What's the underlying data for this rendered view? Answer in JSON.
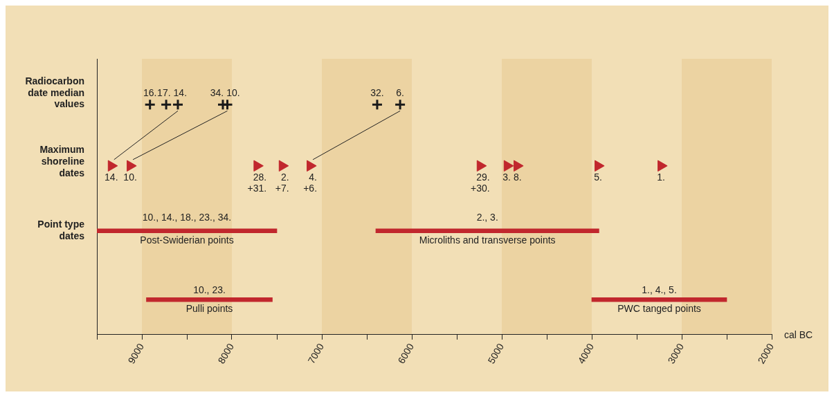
{
  "chart_data": {
    "type": "bar",
    "orientation": "horizontal",
    "xlabel": "cal BC",
    "categories": [
      "Radiocarbon date median values",
      "Maximum shoreline dates",
      "Point type dates",
      null
    ],
    "xlim": [
      9500,
      2000
    ],
    "xticks": [
      {
        "value": 9500,
        "label": null
      },
      9000,
      {
        "value": 8500,
        "label": null
      },
      8000,
      {
        "value": 7500,
        "label": null
      },
      7000,
      {
        "value": 6500,
        "label": null
      },
      6000,
      {
        "value": 5500,
        "label": null
      },
      5000,
      {
        "value": 4500,
        "label": null
      },
      4000,
      {
        "value": 3500,
        "label": null
      },
      3000,
      {
        "value": 2500,
        "label": null
      },
      2000
    ],
    "bands": [
      {
        "axis": "x",
        "from": 9000,
        "to": 8000,
        "color": "#ecd3a2"
      },
      {
        "axis": "x",
        "from": 7000,
        "to": 6000,
        "color": "#ecd3a2"
      },
      {
        "axis": "x",
        "from": 5000,
        "to": 4000,
        "color": "#ecd3a2"
      },
      {
        "axis": "x",
        "from": 3000,
        "to": 2000,
        "color": "#ecd3a2"
      }
    ],
    "annotations": [
      {
        "text": "10., 14., 18., 23., 34.",
        "x": 8500,
        "y": "Point type dates"
      },
      {
        "text": "10., 23."
      },
      {
        "text": "2., 3.",
        "x": 5160,
        "y": "Point type dates"
      },
      {
        "text": "1., 4., 5."
      }
    ],
    "series": [
      {
        "type": "scatter",
        "marker": "cross",
        "name": "16.",
        "color": "#1a1a1a",
        "values": [
          8910,
          null,
          null,
          null
        ]
      },
      {
        "type": "scatter",
        "marker": "cross",
        "name": "17.",
        "color": "#1a1a1a",
        "values": [
          8730,
          null,
          null,
          null
        ]
      },
      {
        "type": "scatter",
        "marker": "cross",
        "name": "14.",
        "color": "#1a1a1a",
        "values": [
          8600,
          null,
          null,
          null
        ]
      },
      {
        "type": "scatter",
        "marker": "cross",
        "name": "34.",
        "color": "#1a1a1a",
        "values": [
          8100,
          null,
          null,
          null
        ]
      },
      {
        "type": "scatter",
        "marker": "cross",
        "name": "10.",
        "color": "#1a1a1a",
        "values": [
          8050,
          null,
          null,
          null
        ]
      },
      {
        "type": "scatter",
        "marker": "cross",
        "name": "32.",
        "color": "#1a1a1a",
        "values": [
          6385,
          null,
          null,
          null
        ]
      },
      {
        "type": "scatter",
        "marker": "cross",
        "name": "6.",
        "color": "#1a1a1a",
        "values": [
          6130,
          null,
          null,
          null
        ]
      },
      {
        "type": "scatter",
        "marker": "triangle",
        "name": "14.",
        "color": "#c1272d",
        "values": [
          null,
          9340,
          null,
          null
        ]
      },
      {
        "type": "scatter",
        "marker": "triangle",
        "name": "10.",
        "color": "#c1272d",
        "values": [
          null,
          9130,
          null,
          null
        ]
      },
      {
        "type": "scatter",
        "marker": "triangle",
        "name": "28.\n+31.",
        "color": "#c1272d",
        "values": [
          null,
          7720,
          null,
          null
        ]
      },
      {
        "type": "scatter",
        "marker": "triangle",
        "name": "2.\n+7.",
        "color": "#c1272d",
        "values": [
          null,
          7440,
          null,
          null
        ]
      },
      {
        "type": "scatter",
        "marker": "triangle",
        "name": "4.\n+6.",
        "color": "#c1272d",
        "values": [
          null,
          7130,
          null,
          null
        ]
      },
      {
        "type": "scatter",
        "marker": "triangle",
        "name": "29.\n+30.",
        "color": "#c1272d",
        "values": [
          null,
          5240,
          null,
          null
        ]
      },
      {
        "type": "scatter",
        "marker": "triangle",
        "name": "3.",
        "color": "#c1272d",
        "values": [
          null,
          4940,
          null,
          null
        ]
      },
      {
        "type": "scatter",
        "marker": "triangle",
        "name": "8.",
        "color": "#c1272d",
        "values": [
          null,
          4830,
          null,
          null
        ]
      },
      {
        "type": "scatter",
        "marker": "triangle",
        "name": "5.",
        "color": "#c1272d",
        "values": [
          null,
          3930,
          null,
          null
        ]
      },
      {
        "type": "scatter",
        "marker": "triangle",
        "name": "1.",
        "color": "#c1272d",
        "values": [
          null,
          3230,
          null,
          null
        ]
      },
      {
        "name": "Post-Swiderian points",
        "color": "#c1272d",
        "base": [
          null,
          null,
          7500,
          null
        ],
        "values": [
          null,
          null,
          2000,
          null
        ]
      },
      {
        "name": "Pulli points",
        "color": "#c1272d",
        "base": [
          null,
          null,
          null,
          7550
        ],
        "values": [
          null,
          null,
          null,
          1400
        ]
      },
      {
        "name": "Microliths and transverse points",
        "color": "#c1272d",
        "base": [
          null,
          null,
          3920,
          null
        ],
        "values": [
          null,
          null,
          2480,
          null
        ]
      },
      {
        "name": "PWC tanged points",
        "color": "#c1272d",
        "base": [
          null,
          null,
          null,
          2500
        ],
        "values": [
          null,
          null,
          null,
          1500
        ]
      }
    ]
  }
}
